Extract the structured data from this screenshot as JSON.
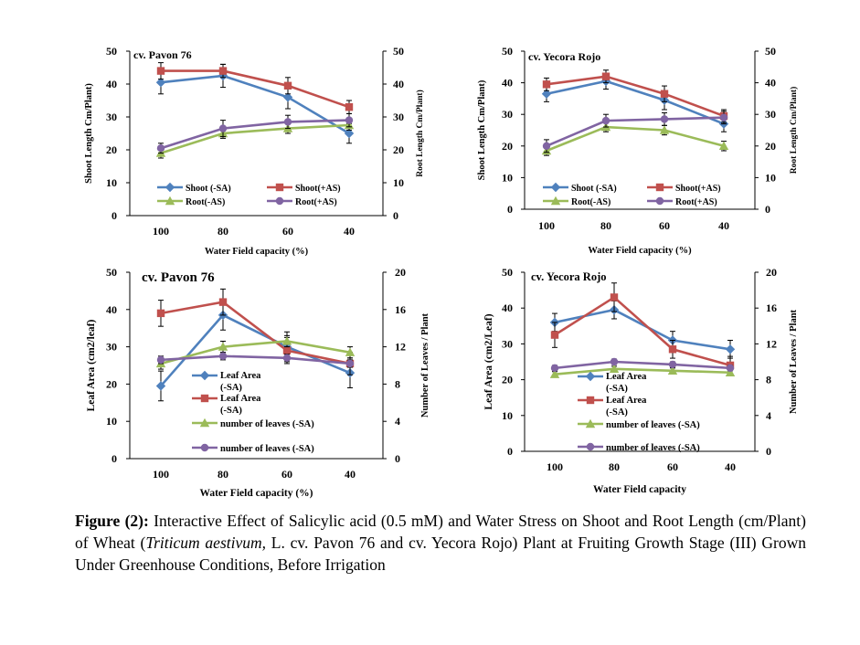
{
  "caption": {
    "label": "Figure (2):",
    "text_before_italic": " Interactive Effect of Salicylic acid (0.5 mM) and Water Stress on Shoot and Root Length (cm/Plant) of Wheat (",
    "italic": "Triticum aestivum,",
    "text_after_italic": " L. cv. Pavon 76 and cv. Yecora Rojo) Plant at Fruiting Growth Stage (III) Grown Under Greenhouse Conditions, Before Irrigation"
  },
  "colors": {
    "blue": "#4f81bd",
    "red": "#c0504d",
    "green": "#9bbb59",
    "purple": "#8064a2"
  },
  "chart_data": [
    {
      "type": "line",
      "title": "cv. Pavon 76",
      "xlabel": "Water Field capacity  (%)",
      "ylabel": "Shoot Length Cm/Plant)",
      "y2label": "Root Length Cm/Plant)",
      "categories": [
        "100",
        "80",
        "60",
        "40"
      ],
      "ylim": [
        0,
        50
      ],
      "yticks": [
        "0",
        "10",
        "20",
        "30",
        "40",
        "50"
      ],
      "y2lim": [
        0,
        50
      ],
      "y2ticks": [
        "0",
        "10",
        "20",
        "30",
        "40",
        "50"
      ],
      "legend_position": "bottom-center",
      "series": [
        {
          "name": "Shoot (-SA)",
          "axis": "left",
          "color": "#4f81bd",
          "marker": "diamond",
          "values": [
            40.5,
            42.5,
            36,
            25
          ],
          "errors": [
            3.5,
            3.5,
            3.5,
            3
          ]
        },
        {
          "name": "Shoot(+AS)",
          "axis": "left",
          "color": "#c0504d",
          "marker": "square",
          "values": [
            44,
            44,
            39.5,
            33
          ],
          "errors": [
            2.5,
            2,
            2.5,
            2
          ]
        },
        {
          "name": "Root(-AS)",
          "axis": "right",
          "color": "#9bbb59",
          "marker": "triangle",
          "values": [
            19,
            25,
            26.5,
            27.5
          ],
          "errors": [
            1.5,
            1.5,
            1.5,
            1.5
          ]
        },
        {
          "name": "Root(+AS)",
          "axis": "right",
          "color": "#8064a2",
          "marker": "circle",
          "values": [
            20.5,
            26.5,
            28.5,
            29
          ],
          "errors": [
            1.5,
            2.5,
            2,
            2
          ]
        }
      ]
    },
    {
      "type": "line",
      "title": "cv. Yecora Rojo",
      "xlabel": "Water Field capacity  (%)",
      "ylabel": "Shoot Length Cm/Plant)",
      "y2label": "Root Length Cm/Plant)",
      "categories": [
        "100",
        "80",
        "60",
        "40"
      ],
      "ylim": [
        0,
        50
      ],
      "yticks": [
        "0",
        "10",
        "20",
        "30",
        "40",
        "50"
      ],
      "y2lim": [
        0,
        50
      ],
      "y2ticks": [
        "0",
        "10",
        "20",
        "30",
        "40",
        "50"
      ],
      "legend_position": "bottom-center",
      "series": [
        {
          "name": "Shoot (-SA)",
          "axis": "left",
          "color": "#4f81bd",
          "marker": "diamond",
          "values": [
            36.5,
            40.5,
            34.5,
            27
          ],
          "errors": [
            2.5,
            2.5,
            3,
            2.5
          ]
        },
        {
          "name": "Shoot(+AS)",
          "axis": "left",
          "color": "#c0504d",
          "marker": "square",
          "values": [
            39.5,
            42,
            36.5,
            29.5
          ],
          "errors": [
            2,
            2,
            2.5,
            2
          ]
        },
        {
          "name": "Root(-AS)",
          "axis": "right",
          "color": "#9bbb59",
          "marker": "triangle",
          "values": [
            18.5,
            26,
            25,
            20
          ],
          "errors": [
            1.5,
            1.5,
            1.5,
            1.5
          ]
        },
        {
          "name": "Root(+AS)",
          "axis": "right",
          "color": "#8064a2",
          "marker": "circle",
          "values": [
            20,
            28,
            28.5,
            29
          ],
          "errors": [
            2,
            2,
            2,
            2
          ]
        }
      ]
    },
    {
      "type": "line",
      "title": "cv. Pavon 76",
      "xlabel": "Water Field capacity (%)",
      "ylabel": "Leaf Area (cm2/leaf)",
      "y2label": "Number of Leaves  / Plant",
      "categories": [
        "100",
        "80",
        "60",
        "40"
      ],
      "ylim": [
        0,
        50
      ],
      "yticks": [
        "0",
        "10",
        "20",
        "30",
        "40",
        "50"
      ],
      "y2lim": [
        0,
        20
      ],
      "y2ticks": [
        "0",
        "4",
        "8",
        "12",
        "16",
        "20"
      ],
      "legend_position": "bottom-left",
      "series": [
        {
          "name": "Leaf Area (-SA)",
          "axis": "left",
          "color": "#4f81bd",
          "marker": "diamond",
          "values": [
            19.5,
            38.5,
            30,
            23
          ],
          "errors": [
            4,
            4,
            4,
            4
          ]
        },
        {
          "name": "Leaf Area (-SA)",
          "axis": "left",
          "color": "#c0504d",
          "marker": "square",
          "values": [
            39,
            42,
            29,
            25.5
          ],
          "errors": [
            3.5,
            3.5,
            3.5,
            3
          ]
        },
        {
          "name": "number of leaves (-SA)",
          "axis": "right",
          "color": "#9bbb59",
          "marker": "triangle",
          "values": [
            10.2,
            12,
            12.6,
            11.4
          ],
          "errors": [
            0.6,
            0.6,
            0.6,
            0.6
          ]
        },
        {
          "name": "number of leaves (-SA)",
          "axis": "right",
          "color": "#8064a2",
          "marker": "circle",
          "values": [
            10.6,
            11,
            10.8,
            10.2
          ],
          "errors": [
            0.4,
            0.4,
            0.4,
            0.4
          ]
        }
      ]
    },
    {
      "type": "line",
      "title": "cv. Yecora Rojo",
      "xlabel": "Water Field capacity",
      "ylabel": "Leaf Area (cm2/Leaf)",
      "y2label": "Number of Leaves  / Plant",
      "categories": [
        "100",
        "80",
        "60",
        "40"
      ],
      "ylim": [
        0,
        50
      ],
      "yticks": [
        "0",
        "10",
        "20",
        "30",
        "40",
        "50"
      ],
      "y2lim": [
        0,
        20
      ],
      "y2ticks": [
        "0",
        "4",
        "8",
        "12",
        "16",
        "20"
      ],
      "legend_position": "bottom-left",
      "series": [
        {
          "name": "Leaf Area (-SA)",
          "axis": "left",
          "color": "#4f81bd",
          "marker": "diamond",
          "values": [
            36,
            39.5,
            31,
            28.5
          ],
          "errors": [
            2.5,
            2.5,
            2.5,
            2.5
          ]
        },
        {
          "name": "Leaf Area (-SA)",
          "axis": "left",
          "color": "#c0504d",
          "marker": "square",
          "values": [
            32.5,
            43,
            28.5,
            24
          ],
          "errors": [
            3.5,
            4,
            2.5,
            2.5
          ]
        },
        {
          "name": "number of leaves (-SA)",
          "axis": "right",
          "color": "#9bbb59",
          "marker": "triangle",
          "values": [
            8.6,
            9.2,
            9,
            8.8
          ],
          "errors": [
            0.3,
            0.3,
            0.3,
            0.3
          ]
        },
        {
          "name": "number of leaves (-SA)",
          "axis": "right",
          "color": "#8064a2",
          "marker": "circle",
          "values": [
            9.3,
            10,
            9.7,
            9.3
          ],
          "errors": [
            0.3,
            0.3,
            0.3,
            0.3
          ]
        }
      ]
    }
  ]
}
